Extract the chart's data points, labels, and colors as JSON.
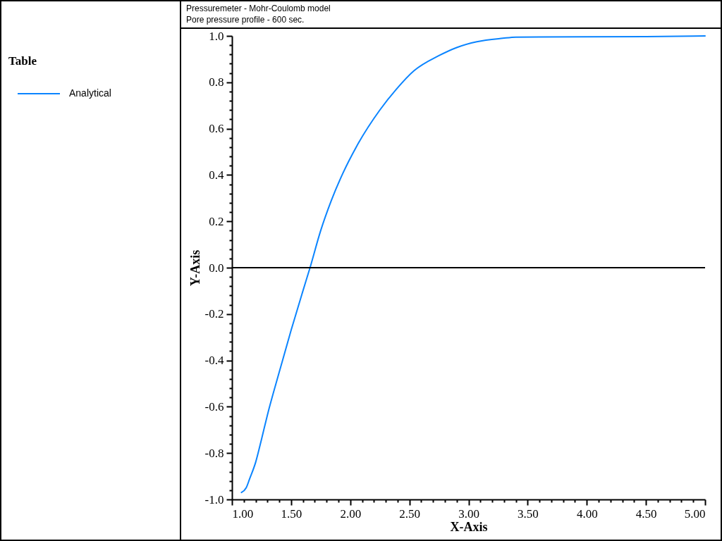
{
  "chart_data": {
    "type": "line",
    "title": "Pressuremeter - Mohr-Coulomb model",
    "subtitle": "Pore pressure profile - 600 sec.",
    "xlabel": "X-Axis",
    "ylabel": "Y-Axis",
    "legend_title": "Table",
    "legend": "left",
    "x": [
      1.08,
      1.12,
      1.15,
      1.2,
      1.25,
      1.3,
      1.4,
      1.5,
      1.6,
      1.66,
      1.75,
      1.84,
      1.94,
      2.05,
      2.25,
      2.39,
      2.54,
      2.75,
      2.9,
      3.07,
      3.29,
      3.4,
      4.5,
      5.0
    ],
    "series": [
      {
        "name": "Analytical",
        "color": "#0a84ff",
        "values": [
          -0.97,
          -0.95,
          -0.91,
          -0.84,
          -0.74,
          -0.635,
          -0.45,
          -0.27,
          -0.1,
          0.0,
          0.16,
          0.29,
          0.41,
          0.52,
          0.68,
          0.77,
          0.85,
          0.915,
          0.95,
          0.975,
          0.99,
          0.995,
          0.997,
          1.0
        ]
      }
    ],
    "xlim": [
      1,
      5
    ],
    "ylim": [
      -1,
      1
    ],
    "xticks": [
      {
        "value": 1,
        "label": "1.00"
      },
      {
        "value": 1.1,
        "label": null
      },
      {
        "value": 1.2,
        "label": null
      },
      {
        "value": 1.3,
        "label": null
      },
      {
        "value": 1.4,
        "label": null
      },
      {
        "value": 1.5,
        "label": "1.50"
      },
      {
        "value": 1.6,
        "label": null
      },
      {
        "value": 1.7,
        "label": null
      },
      {
        "value": 1.8,
        "label": null
      },
      {
        "value": 1.9,
        "label": null
      },
      {
        "value": 2,
        "label": "2.00"
      },
      {
        "value": 2.1,
        "label": null
      },
      {
        "value": 2.2,
        "label": null
      },
      {
        "value": 2.3,
        "label": null
      },
      {
        "value": 2.4,
        "label": null
      },
      {
        "value": 2.5,
        "label": "2.50"
      },
      {
        "value": 2.6,
        "label": null
      },
      {
        "value": 2.7,
        "label": null
      },
      {
        "value": 2.8,
        "label": null
      },
      {
        "value": 2.9,
        "label": null
      },
      {
        "value": 3,
        "label": "3.00"
      },
      {
        "value": 3.1,
        "label": null
      },
      {
        "value": 3.2,
        "label": null
      },
      {
        "value": 3.3,
        "label": null
      },
      {
        "value": 3.4,
        "label": null
      },
      {
        "value": 3.5,
        "label": "3.50"
      },
      {
        "value": 3.6,
        "label": null
      },
      {
        "value": 3.7,
        "label": null
      },
      {
        "value": 3.8,
        "label": null
      },
      {
        "value": 3.9,
        "label": null
      },
      {
        "value": 4,
        "label": "4.00"
      },
      {
        "value": 4.1,
        "label": null
      },
      {
        "value": 4.2,
        "label": null
      },
      {
        "value": 4.3,
        "label": null
      },
      {
        "value": 4.4,
        "label": null
      },
      {
        "value": 4.5,
        "label": "4.50"
      },
      {
        "value": 4.6,
        "label": null
      },
      {
        "value": 4.7,
        "label": null
      },
      {
        "value": 4.8,
        "label": null
      },
      {
        "value": 4.9,
        "label": null
      },
      {
        "value": 5,
        "label": "5.00"
      }
    ],
    "yticks": [
      {
        "value": -1,
        "label": "-1.0"
      },
      {
        "value": -0.96,
        "label": null
      },
      {
        "value": -0.92,
        "label": null
      },
      {
        "value": -0.88,
        "label": null
      },
      {
        "value": -0.84,
        "label": null
      },
      -0.8,
      {
        "value": -0.76,
        "label": null
      },
      {
        "value": -0.72,
        "label": null
      },
      {
        "value": -0.68,
        "label": null
      },
      {
        "value": -0.64,
        "label": null
      },
      -0.6,
      {
        "value": -0.56,
        "label": null
      },
      {
        "value": -0.52,
        "label": null
      },
      {
        "value": -0.48,
        "label": null
      },
      {
        "value": -0.44,
        "label": null
      },
      -0.4,
      {
        "value": -0.36,
        "label": null
      },
      {
        "value": -0.32,
        "label": null
      },
      {
        "value": -0.28,
        "label": null
      },
      {
        "value": -0.24,
        "label": null
      },
      -0.2,
      {
        "value": -0.16,
        "label": null
      },
      {
        "value": -0.12,
        "label": null
      },
      {
        "value": -0.08,
        "label": null
      },
      {
        "value": -0.04,
        "label": null
      },
      {
        "value": 0,
        "label": "0.0"
      },
      {
        "value": 0.04,
        "label": null
      },
      {
        "value": 0.08,
        "label": null
      },
      {
        "value": 0.12,
        "label": null
      },
      {
        "value": 0.16,
        "label": null
      },
      0.2,
      {
        "value": 0.24,
        "label": null
      },
      {
        "value": 0.28,
        "label": null
      },
      {
        "value": 0.32,
        "label": null
      },
      {
        "value": 0.36,
        "label": null
      },
      0.4,
      {
        "value": 0.44,
        "label": null
      },
      {
        "value": 0.48,
        "label": null
      },
      {
        "value": 0.52,
        "label": null
      },
      {
        "value": 0.56,
        "label": null
      },
      0.6,
      {
        "value": 0.64,
        "label": null
      },
      {
        "value": 0.68,
        "label": null
      },
      {
        "value": 0.72,
        "label": null
      },
      {
        "value": 0.76,
        "label": null
      },
      0.8,
      {
        "value": 0.84,
        "label": null
      },
      {
        "value": 0.88,
        "label": null
      },
      {
        "value": 0.92,
        "label": null
      },
      {
        "value": 0.96,
        "label": null
      },
      {
        "value": 1,
        "label": "1.0"
      }
    ],
    "ref_lines": [
      {
        "axis": "y",
        "value": 0,
        "color": "#000000"
      }
    ]
  }
}
